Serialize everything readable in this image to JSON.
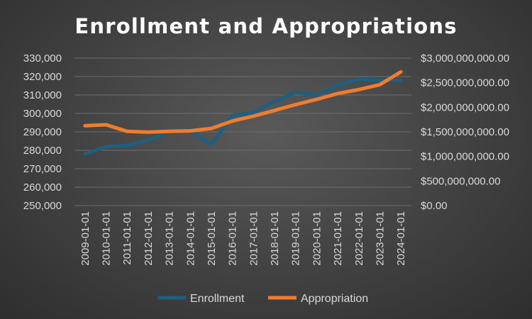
{
  "chart_data": {
    "type": "line",
    "title": "Enrollment and Appropriations",
    "categories": [
      "2009-01-01",
      "2010-01-01",
      "2011-01-01",
      "2012-01-01",
      "2013-01-01",
      "2014-01-01",
      "2015-01-01",
      "2016-01-01",
      "2017-01-01",
      "2018-01-01",
      "2019-01-01",
      "2020-01-01",
      "2021-01-01",
      "2022-01-01",
      "2023-01-01",
      "2024-01-01"
    ],
    "y_left": {
      "min": 250000,
      "max": 330000,
      "step": 10000,
      "tick_labels": [
        "250,000",
        "260,000",
        "270,000",
        "280,000",
        "290,000",
        "300,000",
        "310,000",
        "320,000",
        "330,000"
      ]
    },
    "y_right": {
      "min": 0,
      "max": 3000000000,
      "step": 500000000,
      "tick_labels": [
        "$0.00",
        "$500,000,000.00",
        "$1,000,000,000.00",
        "$1,500,000,000.00",
        "$2,000,000,000.00",
        "$2,500,000,000.00",
        "$3,000,000,000.00"
      ]
    },
    "series": [
      {
        "name": "Enrollment",
        "axis": "left",
        "color": "#1f5f7f",
        "values": [
          278000,
          282000,
          282500,
          285500,
          290000,
          290500,
          283000,
          299000,
          300500,
          306500,
          311500,
          310000,
          315500,
          318500,
          318000,
          318000
        ]
      },
      {
        "name": "Appropriation",
        "axis": "right",
        "color": "#ed7d31",
        "values": [
          1625000000,
          1645000000,
          1510000000,
          1495000000,
          1510000000,
          1520000000,
          1570000000,
          1720000000,
          1820000000,
          1935000000,
          2055000000,
          2160000000,
          2280000000,
          2360000000,
          2460000000,
          2720000000
        ]
      }
    ],
    "grid": true,
    "legend": "bottom"
  }
}
